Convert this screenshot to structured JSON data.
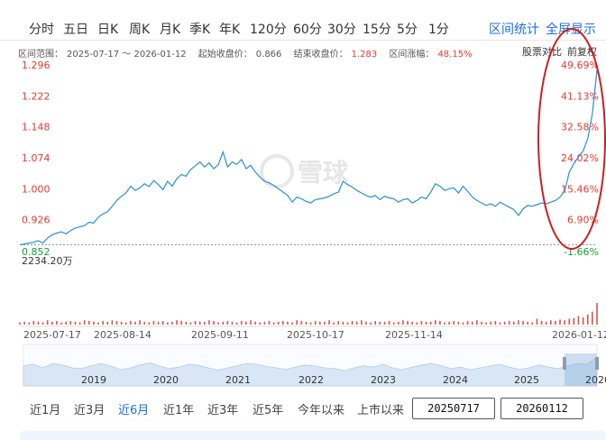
{
  "tabs": [
    "分时",
    "五日",
    "日K",
    "周K",
    "月K",
    "季K",
    "年K",
    "120分",
    "60分",
    "30分",
    "15分",
    "5分",
    "1分"
  ],
  "links": {
    "interval_stats": "区间统计",
    "fullscreen": "全屏显示"
  },
  "range_info": {
    "range_label": "区间范围：",
    "range_value": "2025-07-17 ～ 2026-01-12",
    "start_label": "起始收盘价：",
    "start_value": "0.866",
    "end_label": "结束收盘价：",
    "end_value": "1.283",
    "change_label": "区间涨幅：",
    "change_value": "48.15%"
  },
  "compare_label": "股票对比",
  "adjust_label": "前复权",
  "watermark": "雪球",
  "volume_label": "2234.20万",
  "colors": {
    "line": "#2a8fd8",
    "red": "#e23a2e",
    "green": "#1a9a3c",
    "accent": "#1d6fe0",
    "annotation": "#cc1f1f"
  },
  "chart_data": {
    "type": "line",
    "title": "",
    "x_start": "2025-07-17",
    "x_end": "2026-01-12",
    "x_tick_labels": [
      "2025-07-17",
      "2025-08-14",
      "2025-09-11",
      "2025-10-17",
      "2025-11-14",
      "2026-01-12"
    ],
    "left_axis_labels": [
      "1.296",
      "1.222",
      "1.148",
      "1.074",
      "1.000",
      "0.926",
      "0.852"
    ],
    "right_axis_labels": [
      "49.69%",
      "41.13%",
      "32.58%",
      "24.02%",
      "15.46%",
      "6.90%",
      "-1.66%"
    ],
    "ylim": [
      0.852,
      1.296
    ],
    "series": [
      {
        "values": [
          0.866,
          0.868,
          0.87,
          0.872,
          0.876,
          0.87,
          0.882,
          0.89,
          0.894,
          0.897,
          0.892,
          0.9,
          0.906,
          0.909,
          0.912,
          0.92,
          0.918,
          0.932,
          0.94,
          0.945,
          0.958,
          0.972,
          0.982,
          0.99,
          1.006,
          0.996,
          1.002,
          1.012,
          1.005,
          1.02,
          1.01,
          0.998,
          1.018,
          1.006,
          1.024,
          1.034,
          1.03,
          1.046,
          1.055,
          1.064,
          1.052,
          1.062,
          1.048,
          1.058,
          1.088,
          1.052,
          1.064,
          1.058,
          1.07,
          1.048,
          1.056,
          1.04,
          1.028,
          1.018,
          1.014,
          1.008,
          1.0,
          0.992,
          0.984,
          0.968,
          0.98,
          0.976,
          0.97,
          0.966,
          0.974,
          0.976,
          0.978,
          0.982,
          0.988,
          0.992,
          1.018,
          1.01,
          1.004,
          0.996,
          0.99,
          0.984,
          0.98,
          0.984,
          0.974,
          0.982,
          0.978,
          0.976,
          0.968,
          0.974,
          0.976,
          0.966,
          0.972,
          0.98,
          0.976,
          0.992,
          1.012,
          1.006,
          0.996,
          1.0,
          1.002,
          0.99,
          1.006,
          0.994,
          0.98,
          0.972,
          0.966,
          0.96,
          0.964,
          0.958,
          0.968,
          0.962,
          0.956,
          0.95,
          0.936,
          0.952,
          0.96,
          0.958,
          0.962,
          0.966,
          0.964,
          0.968,
          0.972,
          0.98,
          0.994,
          1.04,
          1.06,
          1.076,
          1.09,
          1.12,
          1.18,
          1.283
        ]
      },
      {
        "name": "volume",
        "values": [
          3,
          4,
          3,
          5,
          4,
          3,
          6,
          4,
          5,
          3,
          4,
          5,
          4,
          3,
          6,
          5,
          4,
          3,
          5,
          4,
          6,
          5,
          4,
          3,
          5,
          4,
          6,
          4,
          3,
          5,
          4,
          5,
          3,
          4,
          6,
          5,
          4,
          3,
          5,
          4,
          4,
          6,
          5,
          3,
          4,
          5,
          4,
          3,
          5,
          4,
          6,
          4,
          3,
          4,
          5,
          3,
          4,
          5,
          4,
          3,
          6,
          5,
          4,
          3,
          5,
          4,
          4,
          6,
          3,
          5,
          4,
          3,
          5,
          4,
          6,
          4,
          3,
          5,
          4,
          4,
          5,
          3,
          4,
          6,
          5,
          4,
          3,
          5,
          4,
          4,
          6,
          5,
          3,
          4,
          5,
          4,
          3,
          5,
          4,
          6,
          4,
          3,
          4,
          5,
          3,
          4,
          5,
          4,
          6,
          5,
          4,
          3,
          8,
          5,
          4,
          6,
          5,
          7,
          6,
          8,
          9,
          12,
          10,
          14,
          18,
          30
        ]
      }
    ],
    "navigator_years": [
      "2019",
      "2020",
      "2021",
      "2022",
      "2023",
      "2024",
      "2025",
      "2026"
    ]
  },
  "range_buttons": [
    "近1月",
    "近3月",
    "近6月",
    "近1年",
    "近3年",
    "近5年",
    "今年以来",
    "上市以来"
  ],
  "range_active": "近6月",
  "date_from": "20250717",
  "date_to": "20260112"
}
